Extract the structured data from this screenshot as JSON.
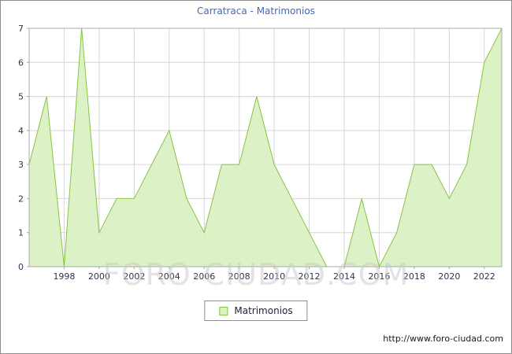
{
  "title": "Carratraca - Matrimonios",
  "watermark": "FORO-CIUDAD.COM",
  "legend": {
    "label": "Matrimonios"
  },
  "footer": {
    "url": "http://www.foro-ciudad.com"
  },
  "chart_data": {
    "type": "area",
    "title": "Carratraca - Matrimonios",
    "xlabel": "",
    "ylabel": "",
    "x": [
      1996,
      1997,
      1998,
      1999,
      2000,
      2001,
      2002,
      2003,
      2004,
      2005,
      2006,
      2007,
      2008,
      2009,
      2010,
      2011,
      2012,
      2013,
      2014,
      2015,
      2016,
      2017,
      2018,
      2019,
      2020,
      2021,
      2022,
      2023
    ],
    "series": [
      {
        "name": "Matrimonios",
        "values": [
          3,
          5,
          0,
          7,
          1,
          2,
          2,
          3,
          4,
          2,
          1,
          3,
          3,
          5,
          3,
          2,
          1,
          0,
          0,
          2,
          0,
          1,
          3,
          3,
          2,
          3,
          6,
          7
        ]
      }
    ],
    "xticks": [
      1998,
      2000,
      2002,
      2004,
      2006,
      2008,
      2010,
      2012,
      2014,
      2016,
      2018,
      2020,
      2022
    ],
    "yticks": [
      0,
      1,
      2,
      3,
      4,
      5,
      6,
      7
    ],
    "ylim": [
      0,
      7
    ],
    "grid": true,
    "legend_position": "bottom",
    "colors": {
      "fill": "#dcf2c6",
      "stroke": "#86c440",
      "grid": "#d6d6d6",
      "axis": "#a8a8a8",
      "text": "#33334d",
      "title": "#4466bb"
    }
  }
}
